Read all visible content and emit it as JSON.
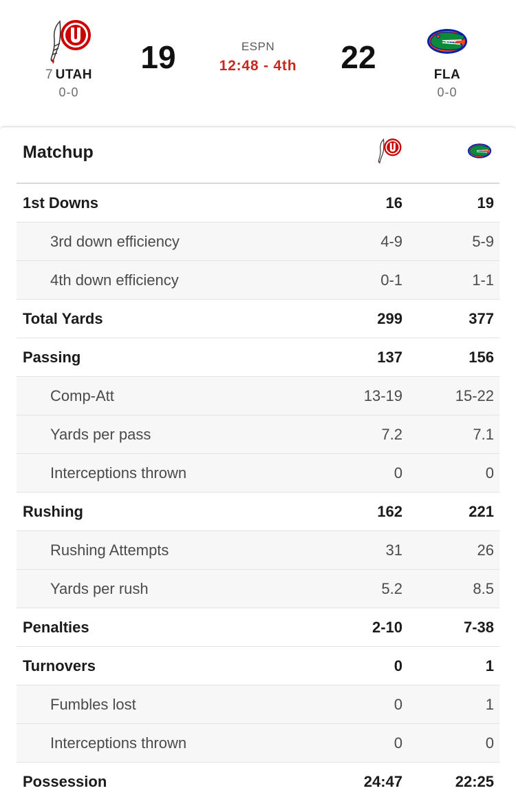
{
  "game": {
    "away": {
      "rank": "7",
      "abbr": "UTAH",
      "record": "0-0",
      "score": "19",
      "logo_icon": "utah-utes-logo-icon",
      "color": "#cc0000"
    },
    "home": {
      "rank": "",
      "abbr": "FLA",
      "record": "0-0",
      "score": "22",
      "logo_icon": "florida-gators-logo-icon",
      "color": "#fa4616"
    },
    "network": "ESPN",
    "clock": "12:48 - 4th",
    "clock_color": "#c8291f"
  },
  "matchup": {
    "title": "Matchup",
    "rows": [
      {
        "label": "1st Downs",
        "away": "16",
        "home": "19",
        "type": "main"
      },
      {
        "label": "3rd down efficiency",
        "away": "4-9",
        "home": "5-9",
        "type": "sub"
      },
      {
        "label": "4th down efficiency",
        "away": "0-1",
        "home": "1-1",
        "type": "sub"
      },
      {
        "label": "Total Yards",
        "away": "299",
        "home": "377",
        "type": "main"
      },
      {
        "label": "Passing",
        "away": "137",
        "home": "156",
        "type": "main"
      },
      {
        "label": "Comp-Att",
        "away": "13-19",
        "home": "15-22",
        "type": "sub"
      },
      {
        "label": "Yards per pass",
        "away": "7.2",
        "home": "7.1",
        "type": "sub"
      },
      {
        "label": "Interceptions thrown",
        "away": "0",
        "home": "0",
        "type": "sub"
      },
      {
        "label": "Rushing",
        "away": "162",
        "home": "221",
        "type": "main"
      },
      {
        "label": "Rushing Attempts",
        "away": "31",
        "home": "26",
        "type": "sub"
      },
      {
        "label": "Yards per rush",
        "away": "5.2",
        "home": "8.5",
        "type": "sub"
      },
      {
        "label": "Penalties",
        "away": "2-10",
        "home": "7-38",
        "type": "main"
      },
      {
        "label": "Turnovers",
        "away": "0",
        "home": "1",
        "type": "main"
      },
      {
        "label": "Fumbles lost",
        "away": "0",
        "home": "1",
        "type": "sub"
      },
      {
        "label": "Interceptions thrown",
        "away": "0",
        "home": "0",
        "type": "sub"
      },
      {
        "label": "Possession",
        "away": "24:47",
        "home": "22:25",
        "type": "main"
      }
    ]
  }
}
